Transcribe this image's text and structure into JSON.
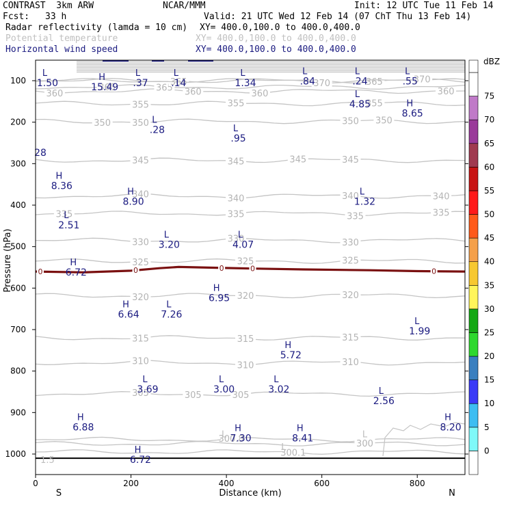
{
  "header": {
    "model": "CONTRAST  3km ARW",
    "center": "NCAR/MMM",
    "init": "Init: 12 UTC Tue 11 Feb 14",
    "fcst_label": "Fcst:",
    "fcst_value": "33 h",
    "valid": "Valid: 21 UTC Wed 12 Feb 14 (07 ChT Thu 13 Feb 14)",
    "field1": "Radar reflectivity (lamda = 10 cm)",
    "field1_xy": "XY= 400.0,100.0 to 400.0,400.0",
    "field2": "Potential temperature",
    "field2_xy": "XY= 400.0,100.0 to 400.0,400.0",
    "field3": "Horizontal wind speed",
    "field3_xy": "XY= 400.0,100.0 to 400.0,400.0"
  },
  "chart_data": {
    "type": "cross-section",
    "xlabel": "Distance (km)",
    "ylabel": "Pressure (hPa)",
    "xlim": [
      0,
      900
    ],
    "ylim": [
      1050,
      70
    ],
    "x_ticks": [
      0,
      200,
      400,
      600,
      800
    ],
    "y_ticks": [
      100,
      200,
      300,
      400,
      500,
      600,
      700,
      800,
      900,
      1000
    ],
    "x_end_labels": {
      "left": "S",
      "right": "N"
    },
    "colorbar": {
      "unit": "dBZ",
      "levels": [
        "0",
        "5",
        "10",
        "15",
        "20",
        "25",
        "30",
        "35",
        "40",
        "45",
        "50",
        "55",
        "60",
        "65",
        "70",
        "75"
      ],
      "colors": [
        "#ffffff",
        "#7ff9f9",
        "#3dbdf2",
        "#3a3af7",
        "#3a7fbf",
        "#2ed82e",
        "#14a814",
        "#fff55a",
        "#f7c830",
        "#f5a04a",
        "#ff5a1a",
        "#ff1a1a",
        "#c81414",
        "#a03a50",
        "#9a3a9a",
        "#c07ac8",
        "#ffffff"
      ]
    },
    "theta_contours": [
      {
        "label": "360",
        "p": 125,
        "labels_x": [
          40,
          330,
          470,
          860
        ]
      },
      {
        "label": "365",
        "p": 115,
        "labels_x": [
          150,
          270
        ]
      },
      {
        "label": "365",
        "p": 100,
        "labels_x": [
          300,
          710
        ]
      },
      {
        "label": "370",
        "p": 100,
        "labels_x": [
          600,
          810
        ]
      },
      {
        "label": "355",
        "p": 155,
        "labels_x": [
          220,
          420,
          710
        ]
      },
      {
        "label": "350",
        "p": 198,
        "labels_x": [
          140,
          220,
          660,
          730
        ]
      },
      {
        "label": "345",
        "p": 292,
        "labels_x": [
          220,
          420,
          550,
          660
        ]
      },
      {
        "label": "340",
        "p": 378,
        "labels_x": [
          220,
          420,
          660,
          850
        ]
      },
      {
        "label": "335",
        "p": 420,
        "labels_x": [
          60,
          420,
          670,
          850
        ]
      },
      {
        "label": "330",
        "p": 485,
        "labels_x": [
          220,
          420,
          660
        ]
      },
      {
        "label": "325",
        "p": 535,
        "labels_x": [
          220,
          440,
          660
        ]
      },
      {
        "label": "320",
        "p": 618,
        "labels_x": [
          220,
          440,
          660
        ]
      },
      {
        "label": "315",
        "p": 720,
        "labels_x": [
          220,
          440,
          660
        ]
      },
      {
        "label": "310",
        "p": 780,
        "labels_x": [
          220,
          440,
          660
        ]
      },
      {
        "label": "305",
        "p": 855,
        "labels_x": [
          220,
          330,
          430
        ]
      },
      {
        "label": "300.8",
        "p": 965,
        "labels_x": [
          410
        ]
      },
      {
        "label": "300.1",
        "p": 995,
        "labels_x": [
          540
        ]
      },
      {
        "label": "300",
        "p": 975,
        "labels_x": [
          690
        ]
      }
    ],
    "reflectivity_zero_line": {
      "label": "0",
      "x": [
        0,
        100,
        200,
        260,
        300,
        380,
        460,
        560,
        700,
        800,
        900
      ],
      "p": [
        560,
        562,
        558,
        552,
        549,
        551,
        553,
        555,
        557,
        559,
        560
      ]
    },
    "extrema": [
      {
        "type": "L",
        "value": "1.50",
        "x": 25,
        "p": 92
      },
      {
        "type": "H",
        "value": "15.49",
        "x": 145,
        "p": 102
      },
      {
        "type": "L",
        "value": ".37",
        "x": 220,
        "p": 92
      },
      {
        "type": "L",
        "value": ".14",
        "x": 300,
        "p": 92
      },
      {
        "type": "L",
        "value": "1.34",
        "x": 440,
        "p": 92
      },
      {
        "type": "L",
        "value": ".84",
        "x": 570,
        "p": 88
      },
      {
        "type": "L",
        "value": ".24",
        "x": 680,
        "p": 88
      },
      {
        "type": "L",
        "value": ".55",
        "x": 785,
        "p": 88
      },
      {
        "type": "L",
        "value": "4.85",
        "x": 680,
        "p": 143
      },
      {
        "type": "H",
        "value": "8.65",
        "x": 790,
        "p": 165
      },
      {
        "type": "L",
        "value": ".28",
        "x": 255,
        "p": 205
      },
      {
        "type": "L",
        "value": ".95",
        "x": 425,
        "p": 225
      },
      {
        "type": "",
        "value": "28",
        "x": 10,
        "p": 260
      },
      {
        "type": "H",
        "value": "8.36",
        "x": 55,
        "p": 340
      },
      {
        "type": "H",
        "value": "8.90",
        "x": 205,
        "p": 378
      },
      {
        "type": "L",
        "value": "1.32",
        "x": 690,
        "p": 378
      },
      {
        "type": "L",
        "value": "2.51",
        "x": 70,
        "p": 435
      },
      {
        "type": "L",
        "value": "3.20",
        "x": 280,
        "p": 482
      },
      {
        "type": "L",
        "value": "4.07",
        "x": 435,
        "p": 482
      },
      {
        "type": "H",
        "value": "6.72",
        "x": 85,
        "p": 548
      },
      {
        "type": "H",
        "value": "6.95",
        "x": 385,
        "p": 610
      },
      {
        "type": "H",
        "value": "6.64",
        "x": 195,
        "p": 650
      },
      {
        "type": "L",
        "value": "7.26",
        "x": 285,
        "p": 650
      },
      {
        "type": "L",
        "value": "1.99",
        "x": 805,
        "p": 690
      },
      {
        "type": "H",
        "value": "5.72",
        "x": 535,
        "p": 748
      },
      {
        "type": "L",
        "value": "3.69",
        "x": 235,
        "p": 830
      },
      {
        "type": "L",
        "value": "3.00",
        "x": 395,
        "p": 830
      },
      {
        "type": "L",
        "value": "3.02",
        "x": 510,
        "p": 830
      },
      {
        "type": "L",
        "value": "2.56",
        "x": 730,
        "p": 858
      },
      {
        "type": "H",
        "value": "6.88",
        "x": 100,
        "p": 922
      },
      {
        "type": "H",
        "value": "7.30",
        "x": 430,
        "p": 948
      },
      {
        "type": "H",
        "value": "8.41",
        "x": 560,
        "p": 948
      },
      {
        "type": "H",
        "value": "8.20",
        "x": 870,
        "p": 922
      },
      {
        "type": "H",
        "value": "6.72",
        "x": 220,
        "p": 1000
      }
    ],
    "gray_extrema": [
      {
        "type": "L",
        "value": "",
        "x": 395,
        "p": 960
      },
      {
        "type": "L",
        "value": "",
        "x": 690,
        "p": 960
      },
      {
        "type": "L",
        "value": "",
        "x": 520,
        "p": 990
      },
      {
        "type": "",
        "value": "1.5",
        "x": 25,
        "p": 1002
      }
    ],
    "ground_line_p": 1010
  }
}
